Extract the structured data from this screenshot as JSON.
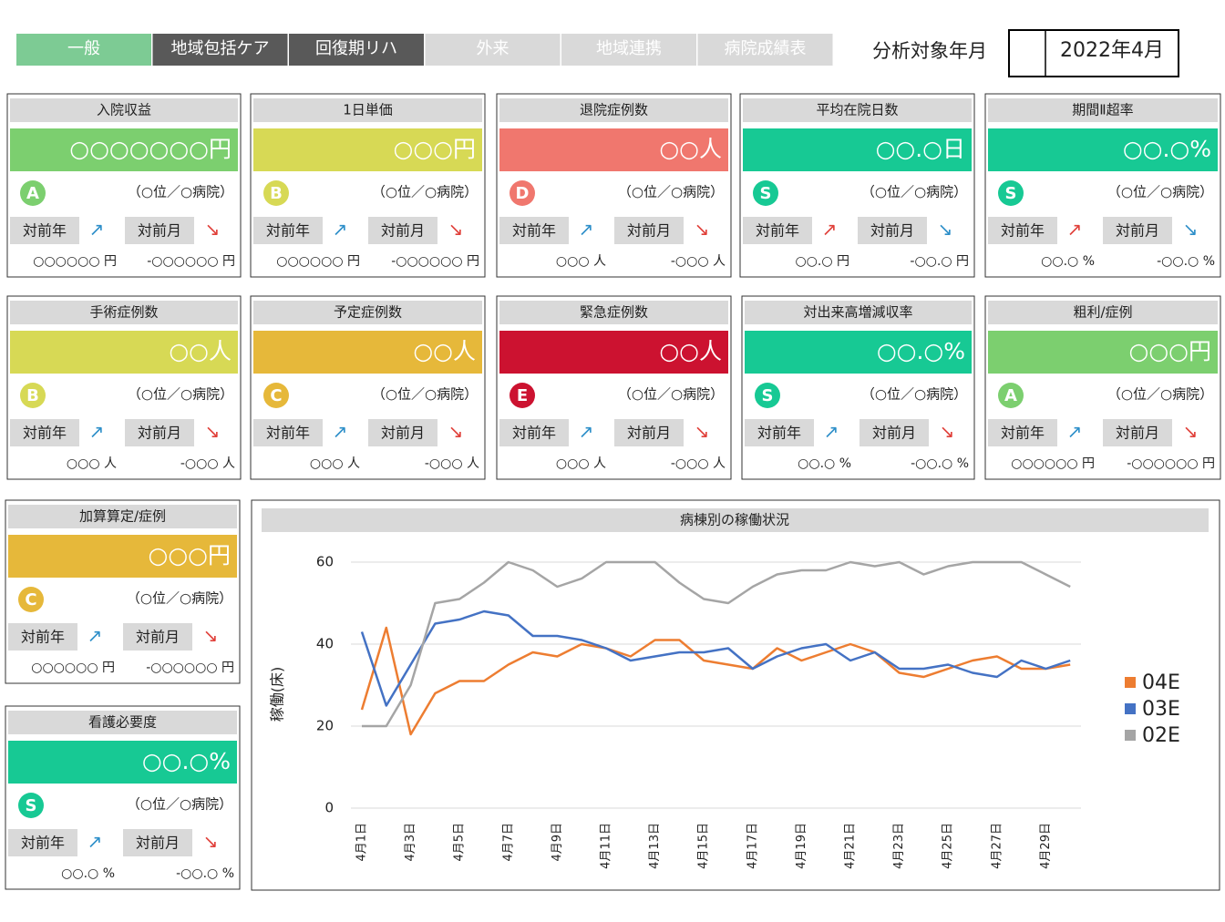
{
  "tabs": [
    {
      "label": "一般",
      "color": "#7dcb94"
    },
    {
      "label": "地域包括ケア",
      "color": "#595959"
    },
    {
      "label": "回復期リハ",
      "color": "#595959"
    },
    {
      "label": "外来",
      "color": "#d9d9d9"
    },
    {
      "label": "地域連携",
      "color": "#d9d9d9"
    },
    {
      "label": "病院成績表",
      "color": "#d9d9d9"
    }
  ],
  "period": {
    "label": "分析対象年月",
    "value": "2022年4月"
  },
  "cards": [
    {
      "title": "入院収益",
      "value": "○○○○○○○円",
      "color": "#7ccf6f",
      "grade": "A",
      "rank": "（○位／○病院）",
      "yoy_label": "対前年",
      "yoy_arrow": "↗",
      "yoy_color": "#2e8fc9",
      "mom_label": "対前月",
      "mom_arrow": "↘",
      "mom_color": "#e0403a",
      "yoy_value": "○○○○○○ 円",
      "mom_value": "-○○○○○○ 円"
    },
    {
      "title": "1日単価",
      "value": "○○○円",
      "color": "#d7d955",
      "grade": "B",
      "rank": "（○位／○病院）",
      "yoy_label": "対前年",
      "yoy_arrow": "↗",
      "yoy_color": "#2e8fc9",
      "mom_label": "対前月",
      "mom_arrow": "↘",
      "mom_color": "#e0403a",
      "yoy_value": "○○○○○○ 円",
      "mom_value": "-○○○○○○ 円"
    },
    {
      "title": "退院症例数",
      "value": "○○人",
      "color": "#f0776e",
      "grade": "D",
      "rank": "（○位／○病院）",
      "yoy_label": "対前年",
      "yoy_arrow": "↗",
      "yoy_color": "#2e8fc9",
      "mom_label": "対前月",
      "mom_arrow": "↘",
      "mom_color": "#e0403a",
      "yoy_value": "○○○ 人",
      "mom_value": "-○○○ 人"
    },
    {
      "title": "平均在院日数",
      "value": "○○.○日",
      "color": "#17c994",
      "grade": "S",
      "rank": "（○位／○病院）",
      "yoy_label": "対前年",
      "yoy_arrow": "↗",
      "yoy_color": "#e0403a",
      "mom_label": "対前月",
      "mom_arrow": "↘",
      "mom_color": "#2e8fc9",
      "yoy_value": "○○.○ 円",
      "mom_value": "-○○.○ 円"
    },
    {
      "title": "期間Ⅱ超率",
      "value": "○○.○%",
      "color": "#17c994",
      "grade": "S",
      "rank": "（○位／○病院）",
      "yoy_label": "対前年",
      "yoy_arrow": "↗",
      "yoy_color": "#e0403a",
      "mom_label": "対前月",
      "mom_arrow": "↘",
      "mom_color": "#2e8fc9",
      "yoy_value": "○○.○ %",
      "mom_value": "-○○.○ %"
    },
    {
      "title": "手術症例数",
      "value": "○○人",
      "color": "#d7d955",
      "grade": "B",
      "rank": "（○位／○病院）",
      "yoy_label": "対前年",
      "yoy_arrow": "↗",
      "yoy_color": "#2e8fc9",
      "mom_label": "対前月",
      "mom_arrow": "↘",
      "mom_color": "#e0403a",
      "yoy_value": "○○○ 人",
      "mom_value": "-○○○ 人"
    },
    {
      "title": "予定症例数",
      "value": "○○人",
      "color": "#e6b83a",
      "grade": "C",
      "rank": "（○位／○病院）",
      "yoy_label": "対前年",
      "yoy_arrow": "↗",
      "yoy_color": "#2e8fc9",
      "mom_label": "対前月",
      "mom_arrow": "↘",
      "mom_color": "#e0403a",
      "yoy_value": "○○○ 人",
      "mom_value": "-○○○ 人"
    },
    {
      "title": "緊急症例数",
      "value": "○○人",
      "color": "#cc1230",
      "grade": "E",
      "rank": "（○位／○病院）",
      "yoy_label": "対前年",
      "yoy_arrow": "↗",
      "yoy_color": "#2e8fc9",
      "mom_label": "対前月",
      "mom_arrow": "↘",
      "mom_color": "#e0403a",
      "yoy_value": "○○○ 人",
      "mom_value": "-○○○ 人"
    },
    {
      "title": "対出来高増減収率",
      "value": "○○.○%",
      "color": "#17c994",
      "grade": "S",
      "rank": "（○位／○病院）",
      "yoy_label": "対前年",
      "yoy_arrow": "↗",
      "yoy_color": "#2e8fc9",
      "mom_label": "対前月",
      "mom_arrow": "↘",
      "mom_color": "#e0403a",
      "yoy_value": "○○.○ %",
      "mom_value": "-○○.○ %"
    },
    {
      "title": "粗利/症例",
      "value": "○○○円",
      "color": "#7ccf6f",
      "grade": "A",
      "rank": "（○位／○病院）",
      "yoy_label": "対前年",
      "yoy_arrow": "↗",
      "yoy_color": "#2e8fc9",
      "mom_label": "対前月",
      "mom_arrow": "↘",
      "mom_color": "#e0403a",
      "yoy_value": "○○○○○○ 円",
      "mom_value": "-○○○○○○ 円"
    },
    {
      "title": "加算算定/症例",
      "value": "○○○円",
      "color": "#e6b83a",
      "grade": "C",
      "rank": "（○位／○病院）",
      "yoy_label": "対前年",
      "yoy_arrow": "↗",
      "yoy_color": "#2e8fc9",
      "mom_label": "対前月",
      "mom_arrow": "↘",
      "mom_color": "#e0403a",
      "yoy_value": "○○○○○○ 円",
      "mom_value": "-○○○○○○ 円"
    },
    {
      "title": "看護必要度",
      "value": "○○.○%",
      "color": "#17c994",
      "grade": "S",
      "rank": "（○位／○病院）",
      "yoy_label": "対前年",
      "yoy_arrow": "↗",
      "yoy_color": "#2e8fc9",
      "mom_label": "対前月",
      "mom_arrow": "↘",
      "mom_color": "#e0403a",
      "yoy_value": "○○.○ %",
      "mom_value": "-○○.○ %"
    }
  ],
  "chart_data": {
    "type": "line",
    "title": "病棟別の稼働状況",
    "y_label": "稼働(床)",
    "categories": [
      "4月1日",
      null,
      "4月3日",
      null,
      "4月5日",
      null,
      "4月7日",
      null,
      "4月9日",
      null,
      "4月11日",
      null,
      "4月13日",
      null,
      "4月15日",
      null,
      "4月17日",
      null,
      "4月19日",
      null,
      "4月21日",
      null,
      "4月23日",
      null,
      "4月25日",
      null,
      "4月27日",
      null,
      "4月29日",
      null
    ],
    "series": [
      {
        "name": "04E",
        "color": "#ed7d31",
        "values": [
          24,
          44,
          18,
          28,
          31,
          31,
          35,
          38,
          37,
          40,
          39,
          37,
          41,
          41,
          36,
          35,
          34,
          39,
          36,
          38,
          40,
          38,
          33,
          32,
          34,
          36,
          37,
          34,
          34,
          35
        ]
      },
      {
        "name": "03E",
        "color": "#4472c4",
        "values": [
          43,
          25,
          35,
          45,
          46,
          48,
          47,
          42,
          42,
          41,
          39,
          36,
          37,
          38,
          38,
          39,
          34,
          37,
          39,
          40,
          36,
          38,
          34,
          34,
          35,
          33,
          32,
          36,
          34,
          36
        ]
      },
      {
        "name": "02E",
        "color": "#a5a5a5",
        "values": [
          20,
          20,
          30,
          50,
          51,
          55,
          60,
          58,
          54,
          56,
          60,
          60,
          60,
          55,
          51,
          50,
          54,
          57,
          58,
          58,
          60,
          59,
          60,
          57,
          59,
          60,
          60,
          60,
          57,
          54
        ]
      }
    ],
    "ylim": [
      0,
      60
    ],
    "yticks": [
      0,
      20,
      40,
      60
    ],
    "grid": true,
    "legend": "right"
  }
}
